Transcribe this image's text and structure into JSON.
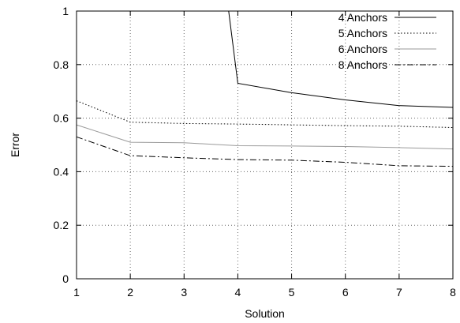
{
  "chart_data": {
    "type": "line",
    "title": "",
    "xlabel": "Solution",
    "ylabel": "Error",
    "x": [
      1,
      2,
      3,
      4,
      5,
      6,
      7,
      8
    ],
    "xlim": [
      1,
      8
    ],
    "ylim": [
      0,
      1
    ],
    "xticks": [
      "1",
      "2",
      "3",
      "4",
      "5",
      "6",
      "7",
      "8"
    ],
    "yticks": [
      "0",
      "0.2",
      "0.4",
      "0.6",
      "0.8",
      "1"
    ],
    "grid": true,
    "legend_position": "top-right",
    "series": [
      {
        "name": "4 Anchors",
        "style": "solid",
        "color": "#000000",
        "x": [
          3.83,
          4,
          5,
          6,
          7,
          8
        ],
        "values": [
          1.0,
          0.73,
          0.695,
          0.668,
          0.647,
          0.64
        ]
      },
      {
        "name": "5 Anchors",
        "style": "dotted",
        "color": "#000000",
        "x": [
          1,
          2,
          3,
          4,
          5,
          6,
          7,
          8
        ],
        "values": [
          0.665,
          0.585,
          0.58,
          0.578,
          0.575,
          0.572,
          0.57,
          0.565
        ]
      },
      {
        "name": "6 Anchors",
        "style": "solid-light",
        "color": "#9a9a9a",
        "x": [
          1,
          2,
          3,
          4,
          5,
          6,
          7,
          8
        ],
        "values": [
          0.575,
          0.51,
          0.508,
          0.497,
          0.496,
          0.494,
          0.49,
          0.485
        ]
      },
      {
        "name": "8 Anchors",
        "style": "dashdot",
        "color": "#000000",
        "x": [
          1,
          2,
          3,
          4,
          5,
          6,
          7,
          8
        ],
        "values": [
          0.53,
          0.46,
          0.452,
          0.445,
          0.443,
          0.435,
          0.422,
          0.42
        ]
      }
    ]
  }
}
